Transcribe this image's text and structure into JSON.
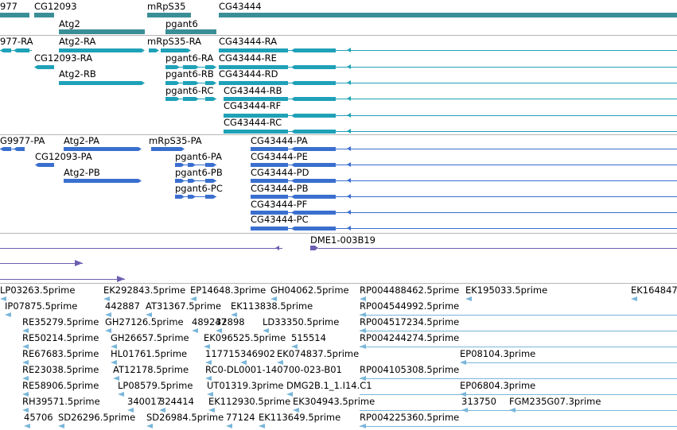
{
  "colors": {
    "gene": "#3a8f96",
    "transcript": "#1fa1b8",
    "protein": "#3a6fcf",
    "clone": "#6a5fb0",
    "est": "#79b6da",
    "divider": "#b5b5b5"
  },
  "tracks": {
    "genes": [
      {
        "label": "977",
        "name": "gene-977"
      },
      {
        "label": "CG12093",
        "name": "gene-cg12093"
      },
      {
        "label": "mRpS35",
        "name": "gene-mrps35"
      },
      {
        "label": "CG43444",
        "name": "gene-cg43444"
      },
      {
        "label": "Atg2",
        "name": "gene-atg2"
      },
      {
        "label": "pgant6",
        "name": "gene-pgant6"
      }
    ],
    "transcripts": [
      {
        "label": "977-RA"
      },
      {
        "label": "Atg2-RA"
      },
      {
        "label": "mRpS35-RA"
      },
      {
        "label": "CG43444-RA"
      },
      {
        "label": "CG12093-RA"
      },
      {
        "label": "pgant6-RA"
      },
      {
        "label": "CG43444-RE"
      },
      {
        "label": "Atg2-RB"
      },
      {
        "label": "pgant6-RB"
      },
      {
        "label": "CG43444-RD"
      },
      {
        "label": "pgant6-RC"
      },
      {
        "label": "CG43444-RB"
      },
      {
        "label": "CG43444-RF"
      },
      {
        "label": "CG43444-RC"
      }
    ],
    "proteins": [
      {
        "label": "G9977-PA"
      },
      {
        "label": "Atg2-PA"
      },
      {
        "label": "mRpS35-PA"
      },
      {
        "label": "CG43444-PA"
      },
      {
        "label": "CG12093-PA"
      },
      {
        "label": "pgant6-PA"
      },
      {
        "label": "CG43444-PE"
      },
      {
        "label": "Atg2-PB"
      },
      {
        "label": "pgant6-PB"
      },
      {
        "label": "CG43444-PD"
      },
      {
        "label": "pgant6-PC"
      },
      {
        "label": "CG43444-PB"
      },
      {
        "label": "CG43444-PF"
      },
      {
        "label": "CG43444-PC"
      }
    ],
    "clones": [
      {
        "label": "DME1-003B19"
      }
    ],
    "ests": [
      "LP03263.5prime",
      "EK292843.5prime",
      "EP14648.3prime",
      "GH04062.5prime",
      "RP004488462.5prime",
      "EK195033.5prime",
      "EK164847",
      "IP07875.5prime",
      "442887",
      "AT31367.5prime",
      "EK113838.5prime",
      "RP004544992.5prime",
      "RE35279.5prime",
      "GH27126.5prime",
      "489247",
      "32898",
      "LD33350.5prime",
      "RP004517234.5prime",
      "RE50214.5prime",
      "GH26657.5prime",
      "EK096525.5prime",
      "515514",
      "RP004244274.5prime",
      "RE67683.5prime",
      "HL01761.5prime",
      "117715",
      "346902",
      "EK074837.5prime",
      "EP08104.3prime",
      "RE23038.5prime",
      "AT12178.5prime",
      "RC0-DL0001-140700-023-B01",
      "RP004105308.5prime",
      "RE58906.5prime",
      "LP08579.5prime",
      "UT01319.3prime",
      "DMG2B.1_1.I14.C1",
      "EP06804.3prime",
      "RH39571.5prime",
      "340017",
      "324414",
      "EK112930.5prime",
      "EK304943.5prime",
      "313750",
      "FGM235G07.3prime",
      "45706",
      "SD26296.5prime",
      "SD26984.5prime",
      "77124",
      "EK113649.5prime",
      "RP004225360.5prime"
    ]
  }
}
